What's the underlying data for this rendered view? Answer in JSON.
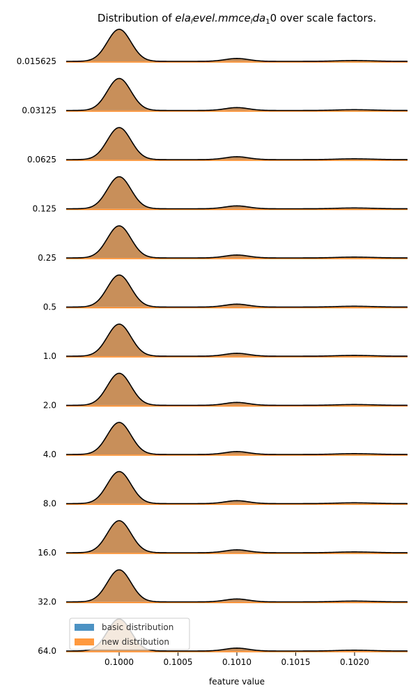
{
  "chart_data": {
    "type": "area",
    "title": "Distribution of ela_level.mmce_lda_10 over scale factors.",
    "title_parts": {
      "prefix": "Distribution of ",
      "math": "ela",
      "sub1": "l",
      "math2": "evel.mmce",
      "sub2": "l",
      "math3": "da",
      "sub3": "1",
      "suffix": "0 over scale factors."
    },
    "xlabel": "feature value",
    "xlim": [
      0.09955,
      0.10245
    ],
    "xticks": [
      "0.1000",
      "0.1005",
      "0.1010",
      "0.1015",
      "0.1020"
    ],
    "xtick_values": [
      0.1,
      0.1005,
      0.101,
      0.1015,
      0.102
    ],
    "categories": [
      "0.015625",
      "0.03125",
      "0.0625",
      "0.125",
      "0.25",
      "0.5",
      "1.0",
      "2.0",
      "4.0",
      "8.0",
      "16.0",
      "32.0",
      "64.0"
    ],
    "density_components": [
      {
        "mean": 0.1,
        "sd": 0.0001,
        "relative_height": 1.0
      },
      {
        "mean": 0.101,
        "sd": 0.0001,
        "relative_height": 0.09
      },
      {
        "mean": 0.102,
        "sd": 0.00015,
        "relative_height": 0.025
      }
    ],
    "series": [
      {
        "name": "basic distribution",
        "color": "#1f77b4"
      },
      {
        "name": "new distribution",
        "color": "#ff7f0e"
      }
    ],
    "overlap_color": "#c88f5a",
    "legend_position": "lower-left",
    "grid": false
  }
}
